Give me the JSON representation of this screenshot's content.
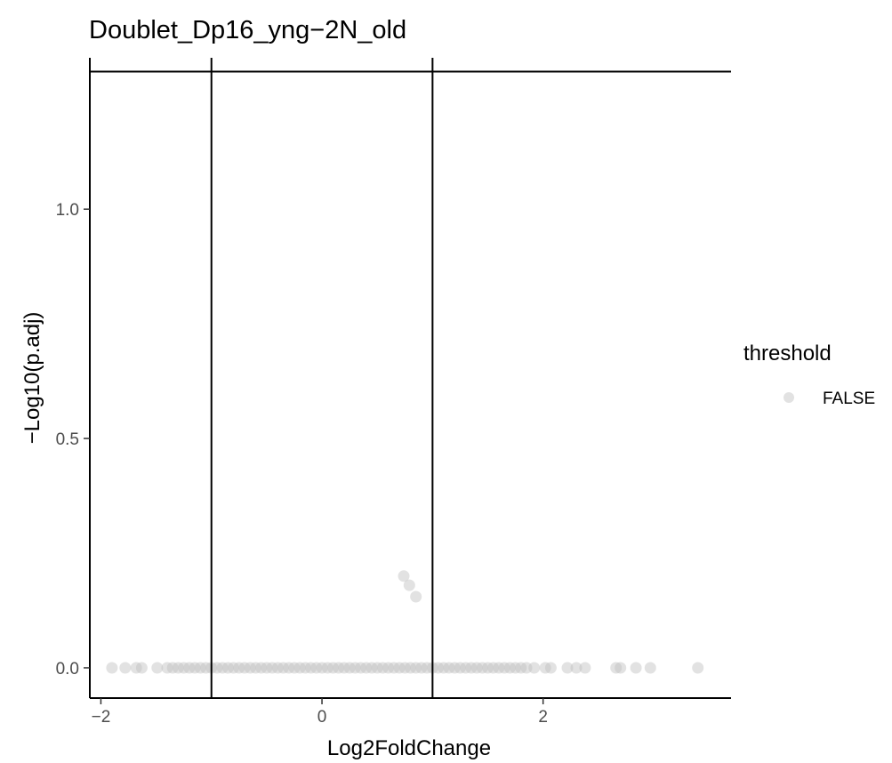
{
  "chart_data": {
    "type": "scatter",
    "title": "Doublet_Dp16_yng−2N_old",
    "xlabel": "Log2FoldChange",
    "ylabel": "−Log10(p.adj)",
    "xlim": [
      -2.1,
      3.7
    ],
    "ylim": [
      -0.066,
      1.33
    ],
    "x_ticks": [
      -2,
      0,
      2
    ],
    "x_tick_labels": [
      "−2",
      "0",
      "2"
    ],
    "y_ticks": [
      0.0,
      0.5,
      1.0
    ],
    "y_tick_labels": [
      "0.0",
      "0.5",
      "1.0"
    ],
    "grid": false,
    "legend": {
      "title": "threshold",
      "position": "right",
      "entries": [
        {
          "label": "FALSE",
          "color": "#bebebe"
        }
      ]
    },
    "reference_lines": {
      "vertical": [
        -1,
        1
      ],
      "horizontal": [
        1.3
      ]
    },
    "point_color": "#bebebe",
    "series": [
      {
        "points": [
          [
            0.74,
            0.2
          ],
          [
            0.79,
            0.18
          ],
          [
            0.85,
            0.155
          ],
          [
            -1.9,
            0
          ],
          [
            -1.78,
            0
          ],
          [
            -1.68,
            0
          ],
          [
            -1.63,
            0
          ],
          [
            -1.49,
            0
          ],
          [
            -1.4,
            0
          ],
          [
            -1.35,
            0
          ],
          [
            -1.3,
            0
          ],
          [
            -1.25,
            0
          ],
          [
            -1.2,
            0
          ],
          [
            -1.15,
            0
          ],
          [
            -1.1,
            0
          ],
          [
            -1.05,
            0
          ],
          [
            -1.0,
            0
          ],
          [
            -0.95,
            0
          ],
          [
            -0.9,
            0
          ],
          [
            -0.85,
            0
          ],
          [
            -0.8,
            0
          ],
          [
            -0.75,
            0
          ],
          [
            -0.7,
            0
          ],
          [
            -0.65,
            0
          ],
          [
            -0.6,
            0
          ],
          [
            -0.55,
            0
          ],
          [
            -0.5,
            0
          ],
          [
            -0.45,
            0
          ],
          [
            -0.4,
            0
          ],
          [
            -0.35,
            0
          ],
          [
            -0.3,
            0
          ],
          [
            -0.25,
            0
          ],
          [
            -0.2,
            0
          ],
          [
            -0.15,
            0
          ],
          [
            -0.1,
            0
          ],
          [
            -0.05,
            0
          ],
          [
            0.0,
            0
          ],
          [
            0.05,
            0
          ],
          [
            0.1,
            0
          ],
          [
            0.15,
            0
          ],
          [
            0.2,
            0
          ],
          [
            0.25,
            0
          ],
          [
            0.3,
            0
          ],
          [
            0.35,
            0
          ],
          [
            0.4,
            0
          ],
          [
            0.45,
            0
          ],
          [
            0.5,
            0
          ],
          [
            0.55,
            0
          ],
          [
            0.6,
            0
          ],
          [
            0.65,
            0
          ],
          [
            0.7,
            0
          ],
          [
            0.75,
            0
          ],
          [
            0.8,
            0
          ],
          [
            0.85,
            0
          ],
          [
            0.9,
            0
          ],
          [
            0.95,
            0
          ],
          [
            1.0,
            0
          ],
          [
            1.05,
            0
          ],
          [
            1.1,
            0
          ],
          [
            1.15,
            0
          ],
          [
            1.2,
            0
          ],
          [
            1.25,
            0
          ],
          [
            1.3,
            0
          ],
          [
            1.35,
            0
          ],
          [
            1.4,
            0
          ],
          [
            1.45,
            0
          ],
          [
            1.5,
            0
          ],
          [
            1.55,
            0
          ],
          [
            1.6,
            0
          ],
          [
            1.65,
            0
          ],
          [
            1.7,
            0
          ],
          [
            1.75,
            0
          ],
          [
            1.8,
            0
          ],
          [
            1.85,
            0
          ],
          [
            1.92,
            0
          ],
          [
            2.02,
            0
          ],
          [
            2.07,
            0
          ],
          [
            2.22,
            0
          ],
          [
            2.3,
            0
          ],
          [
            2.38,
            0
          ],
          [
            2.66,
            0
          ],
          [
            2.7,
            0
          ],
          [
            2.84,
            0
          ],
          [
            2.97,
            0
          ],
          [
            3.4,
            0
          ]
        ]
      }
    ]
  }
}
